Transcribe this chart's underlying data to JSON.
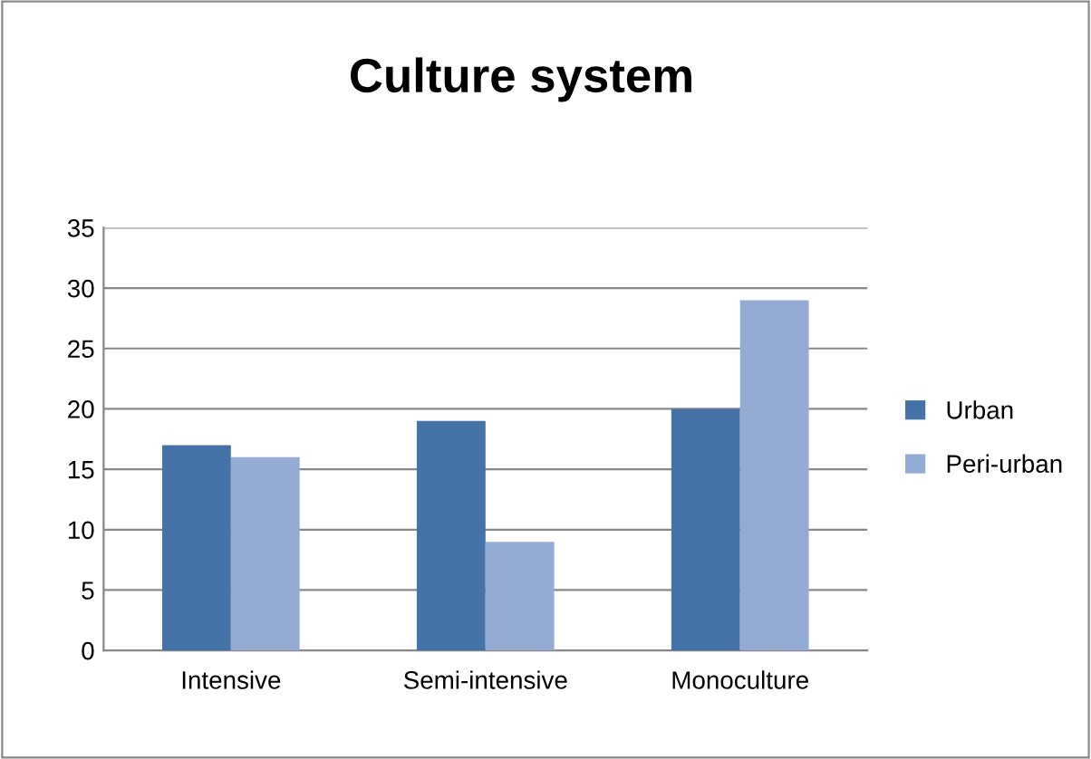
{
  "chart_data": {
    "type": "bar",
    "title": "Culture system",
    "categories": [
      "Intensive",
      "Semi-intensive",
      "Monoculture"
    ],
    "series": [
      {
        "name": "Urban",
        "color": "#4572a7",
        "values": [
          17,
          19,
          20
        ]
      },
      {
        "name": "Peri-urban",
        "color": "#94acd4",
        "values": [
          16,
          9,
          29
        ]
      }
    ],
    "ylim": [
      0,
      35
    ],
    "yticks": [
      0,
      5,
      10,
      15,
      20,
      25,
      30,
      35
    ],
    "grid": "y",
    "legend": "right"
  }
}
